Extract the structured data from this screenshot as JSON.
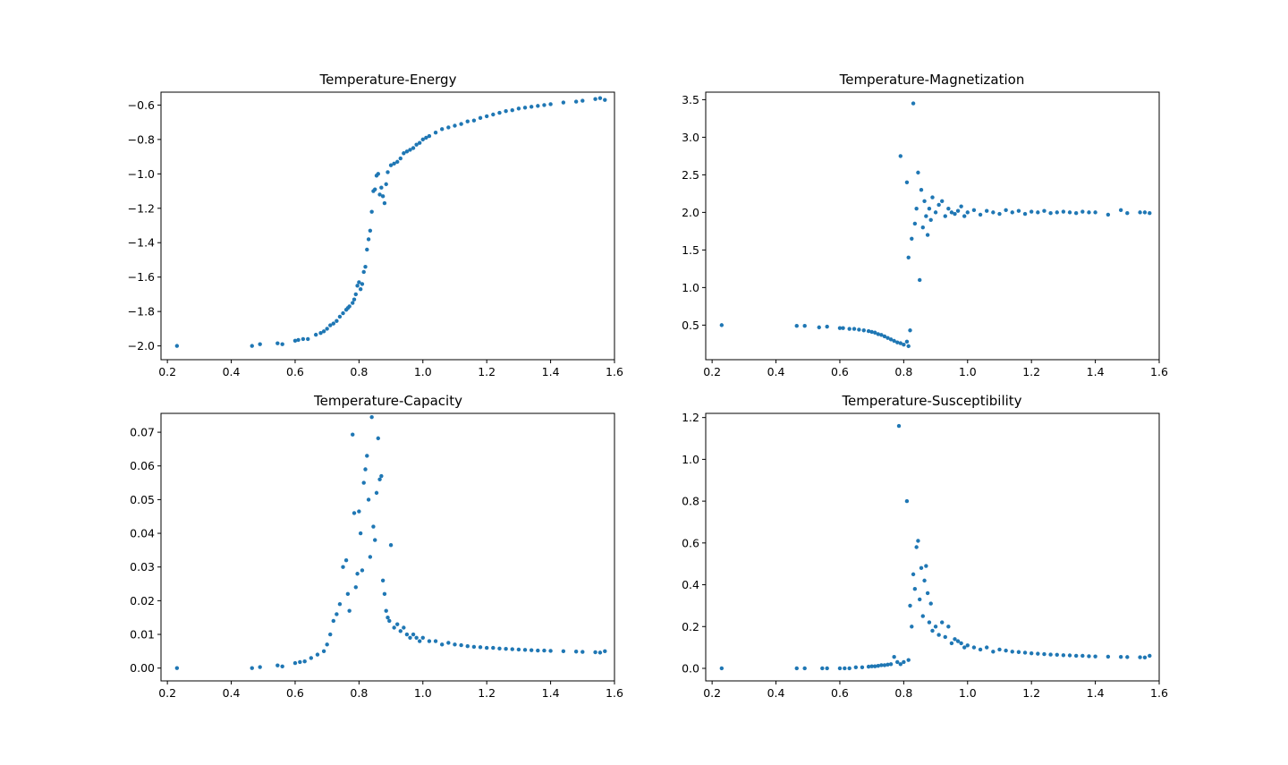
{
  "colors": {
    "marker": "#1f77b4",
    "axes": "#000000",
    "background": "#ffffff"
  },
  "chart_data": [
    {
      "type": "scatter",
      "title": "Temperature-Energy",
      "xlabel": "",
      "ylabel": "",
      "xlim": [
        0.18,
        1.6
      ],
      "ylim": [
        -2.08,
        -0.525
      ],
      "xticks": [
        "0.2",
        "0.4",
        "0.6",
        "0.8",
        "1.0",
        "1.2",
        "1.4",
        "1.6"
      ],
      "xtick_values": [
        0.2,
        0.4,
        0.6,
        0.8,
        1.0,
        1.2,
        1.4,
        1.6
      ],
      "yticks": [
        "-2.0",
        "-1.8",
        "-1.6",
        "-1.4",
        "-1.2",
        "-1.0",
        "-0.8",
        "-0.6"
      ],
      "ytick_values": [
        -2.0,
        -1.8,
        -1.6,
        -1.4,
        -1.2,
        -1.0,
        -0.8,
        -0.6
      ],
      "grid": false,
      "legend": "none",
      "x": [
        0.23,
        0.465,
        0.49,
        0.545,
        0.56,
        0.6,
        0.61,
        0.625,
        0.64,
        0.665,
        0.68,
        0.69,
        0.7,
        0.71,
        0.72,
        0.73,
        0.74,
        0.75,
        0.76,
        0.765,
        0.77,
        0.78,
        0.785,
        0.79,
        0.795,
        0.8,
        0.805,
        0.81,
        0.815,
        0.82,
        0.825,
        0.83,
        0.835,
        0.84,
        0.845,
        0.85,
        0.855,
        0.86,
        0.865,
        0.87,
        0.875,
        0.88,
        0.885,
        0.89,
        0.9,
        0.91,
        0.92,
        0.93,
        0.94,
        0.95,
        0.96,
        0.97,
        0.98,
        0.99,
        1.0,
        1.01,
        1.02,
        1.04,
        1.06,
        1.08,
        1.1,
        1.12,
        1.14,
        1.16,
        1.18,
        1.2,
        1.22,
        1.24,
        1.26,
        1.28,
        1.3,
        1.32,
        1.34,
        1.36,
        1.38,
        1.4,
        1.44,
        1.48,
        1.5,
        1.54,
        1.555,
        1.57
      ],
      "y": [
        -2.0,
        -2.0,
        -1.99,
        -1.985,
        -1.99,
        -1.97,
        -1.965,
        -1.96,
        -1.96,
        -1.935,
        -1.925,
        -1.915,
        -1.9,
        -1.88,
        -1.87,
        -1.855,
        -1.83,
        -1.81,
        -1.79,
        -1.78,
        -1.77,
        -1.75,
        -1.73,
        -1.7,
        -1.65,
        -1.63,
        -1.67,
        -1.64,
        -1.57,
        -1.54,
        -1.44,
        -1.38,
        -1.33,
        -1.22,
        -1.1,
        -1.09,
        -1.01,
        -1.0,
        -1.12,
        -1.08,
        -1.13,
        -1.17,
        -1.06,
        -0.99,
        -0.95,
        -0.94,
        -0.93,
        -0.91,
        -0.88,
        -0.87,
        -0.86,
        -0.85,
        -0.83,
        -0.82,
        -0.8,
        -0.79,
        -0.78,
        -0.76,
        -0.74,
        -0.73,
        -0.72,
        -0.71,
        -0.695,
        -0.69,
        -0.675,
        -0.665,
        -0.655,
        -0.645,
        -0.635,
        -0.63,
        -0.62,
        -0.615,
        -0.61,
        -0.605,
        -0.6,
        -0.595,
        -0.585,
        -0.58,
        -0.575,
        -0.565,
        -0.56,
        -0.57
      ]
    },
    {
      "type": "scatter",
      "title": "Temperature-Magnetization",
      "xlabel": "",
      "ylabel": "",
      "xlim": [
        0.18,
        1.6
      ],
      "ylim": [
        0.04,
        3.6
      ],
      "xticks": [
        "0.2",
        "0.4",
        "0.6",
        "0.8",
        "1.0",
        "1.2",
        "1.4",
        "1.6"
      ],
      "xtick_values": [
        0.2,
        0.4,
        0.6,
        0.8,
        1.0,
        1.2,
        1.4,
        1.6
      ],
      "yticks": [
        "0.5",
        "1.0",
        "1.5",
        "2.0",
        "2.5",
        "3.0",
        "3.5"
      ],
      "ytick_values": [
        0.5,
        1.0,
        1.5,
        2.0,
        2.5,
        3.0,
        3.5
      ],
      "grid": false,
      "legend": "none",
      "x": [
        0.23,
        0.465,
        0.49,
        0.535,
        0.56,
        0.6,
        0.61,
        0.63,
        0.645,
        0.66,
        0.675,
        0.69,
        0.7,
        0.71,
        0.72,
        0.73,
        0.74,
        0.75,
        0.76,
        0.77,
        0.78,
        0.79,
        0.8,
        0.81,
        0.815,
        0.82,
        0.79,
        0.81,
        0.815,
        0.825,
        0.83,
        0.835,
        0.84,
        0.845,
        0.85,
        0.855,
        0.86,
        0.865,
        0.87,
        0.875,
        0.88,
        0.885,
        0.89,
        0.9,
        0.91,
        0.92,
        0.93,
        0.94,
        0.95,
        0.96,
        0.97,
        0.98,
        0.99,
        1.0,
        1.02,
        1.04,
        1.06,
        1.08,
        1.1,
        1.12,
        1.14,
        1.16,
        1.18,
        1.2,
        1.22,
        1.24,
        1.26,
        1.28,
        1.3,
        1.32,
        1.34,
        1.36,
        1.38,
        1.4,
        1.44,
        1.48,
        1.5,
        1.54,
        1.555,
        1.57
      ],
      "y": [
        0.5,
        0.49,
        0.49,
        0.47,
        0.48,
        0.46,
        0.46,
        0.45,
        0.45,
        0.44,
        0.43,
        0.42,
        0.41,
        0.4,
        0.38,
        0.37,
        0.35,
        0.33,
        0.31,
        0.29,
        0.27,
        0.26,
        0.24,
        0.28,
        0.22,
        0.43,
        2.75,
        2.4,
        1.4,
        1.65,
        3.45,
        1.85,
        2.05,
        2.53,
        1.1,
        2.3,
        1.8,
        2.15,
        1.95,
        1.7,
        2.05,
        1.9,
        2.2,
        2.0,
        2.1,
        2.15,
        1.95,
        2.05,
        2.0,
        1.98,
        2.02,
        2.08,
        1.95,
        2.0,
        2.03,
        1.97,
        2.02,
        2.0,
        1.98,
        2.03,
        2.0,
        2.02,
        1.98,
        2.01,
        2.0,
        2.02,
        1.99,
        2.0,
        2.01,
        2.0,
        1.99,
        2.01,
        2.0,
        2.0,
        1.97,
        2.03,
        1.99,
        2.0,
        2.0,
        1.99
      ]
    },
    {
      "type": "scatter",
      "title": "Temperature-Capacity",
      "xlabel": "",
      "ylabel": "",
      "xlim": [
        0.18,
        1.6
      ],
      "ylim": [
        -0.0038,
        0.0756
      ],
      "xticks": [
        "0.2",
        "0.4",
        "0.6",
        "0.8",
        "1.0",
        "1.2",
        "1.4",
        "1.6"
      ],
      "xtick_values": [
        0.2,
        0.4,
        0.6,
        0.8,
        1.0,
        1.2,
        1.4,
        1.6
      ],
      "yticks": [
        "0.00",
        "0.01",
        "0.02",
        "0.03",
        "0.04",
        "0.05",
        "0.06",
        "0.07"
      ],
      "ytick_values": [
        0.0,
        0.01,
        0.02,
        0.03,
        0.04,
        0.05,
        0.06,
        0.07
      ],
      "grid": false,
      "legend": "none",
      "x": [
        0.23,
        0.465,
        0.49,
        0.545,
        0.56,
        0.6,
        0.615,
        0.63,
        0.65,
        0.67,
        0.69,
        0.7,
        0.71,
        0.72,
        0.73,
        0.74,
        0.75,
        0.76,
        0.765,
        0.77,
        0.78,
        0.785,
        0.79,
        0.795,
        0.8,
        0.805,
        0.81,
        0.815,
        0.82,
        0.825,
        0.83,
        0.835,
        0.84,
        0.845,
        0.85,
        0.855,
        0.86,
        0.865,
        0.87,
        0.875,
        0.88,
        0.885,
        0.89,
        0.895,
        0.9,
        0.91,
        0.92,
        0.93,
        0.94,
        0.95,
        0.96,
        0.97,
        0.98,
        0.99,
        1.0,
        1.02,
        1.04,
        1.06,
        1.08,
        1.1,
        1.12,
        1.14,
        1.16,
        1.18,
        1.2,
        1.22,
        1.24,
        1.26,
        1.28,
        1.3,
        1.32,
        1.34,
        1.36,
        1.38,
        1.4,
        1.44,
        1.48,
        1.5,
        1.54,
        1.555,
        1.57
      ],
      "y": [
        0.0,
        0.0,
        0.0003,
        0.0008,
        0.0005,
        0.0015,
        0.0018,
        0.002,
        0.003,
        0.004,
        0.005,
        0.007,
        0.01,
        0.014,
        0.016,
        0.019,
        0.03,
        0.032,
        0.022,
        0.017,
        0.0693,
        0.046,
        0.024,
        0.028,
        0.0465,
        0.04,
        0.029,
        0.055,
        0.059,
        0.063,
        0.05,
        0.033,
        0.0745,
        0.042,
        0.038,
        0.052,
        0.0682,
        0.056,
        0.057,
        0.026,
        0.022,
        0.017,
        0.015,
        0.014,
        0.0365,
        0.012,
        0.013,
        0.011,
        0.012,
        0.01,
        0.009,
        0.01,
        0.009,
        0.008,
        0.009,
        0.008,
        0.008,
        0.007,
        0.0075,
        0.007,
        0.0068,
        0.0065,
        0.0063,
        0.0062,
        0.006,
        0.006,
        0.0058,
        0.0057,
        0.0056,
        0.0055,
        0.0054,
        0.0053,
        0.0052,
        0.0052,
        0.0051,
        0.005,
        0.0049,
        0.0048,
        0.0047,
        0.0046,
        0.005
      ]
    },
    {
      "type": "scatter",
      "title": "Temperature-Susceptibility",
      "xlabel": "",
      "ylabel": "",
      "xlim": [
        0.18,
        1.6
      ],
      "ylim": [
        -0.06,
        1.22
      ],
      "xticks": [
        "0.2",
        "0.4",
        "0.6",
        "0.8",
        "1.0",
        "1.2",
        "1.4",
        "1.6"
      ],
      "xtick_values": [
        0.2,
        0.4,
        0.6,
        0.8,
        1.0,
        1.2,
        1.4,
        1.6
      ],
      "yticks": [
        "0.0",
        "0.2",
        "0.4",
        "0.6",
        "0.8",
        "1.0",
        "1.2"
      ],
      "ytick_values": [
        0.0,
        0.2,
        0.4,
        0.6,
        0.8,
        1.0,
        1.2
      ],
      "grid": false,
      "legend": "none",
      "x": [
        0.23,
        0.465,
        0.49,
        0.545,
        0.56,
        0.6,
        0.615,
        0.63,
        0.65,
        0.67,
        0.69,
        0.7,
        0.71,
        0.72,
        0.73,
        0.74,
        0.75,
        0.76,
        0.77,
        0.78,
        0.785,
        0.79,
        0.8,
        0.81,
        0.815,
        0.82,
        0.825,
        0.83,
        0.835,
        0.84,
        0.845,
        0.85,
        0.855,
        0.86,
        0.865,
        0.87,
        0.875,
        0.88,
        0.885,
        0.89,
        0.9,
        0.91,
        0.92,
        0.93,
        0.94,
        0.95,
        0.96,
        0.97,
        0.98,
        0.99,
        1.0,
        1.02,
        1.04,
        1.06,
        1.08,
        1.1,
        1.12,
        1.14,
        1.16,
        1.18,
        1.2,
        1.22,
        1.24,
        1.26,
        1.28,
        1.3,
        1.32,
        1.34,
        1.36,
        1.38,
        1.4,
        1.44,
        1.48,
        1.5,
        1.54,
        1.555,
        1.57
      ],
      "y": [
        0.0,
        0.0,
        0.0,
        0.0,
        0.0,
        0.0,
        0.0,
        0.0,
        0.005,
        0.005,
        0.008,
        0.01,
        0.01,
        0.012,
        0.015,
        0.015,
        0.018,
        0.02,
        0.055,
        0.03,
        1.16,
        0.02,
        0.03,
        0.8,
        0.04,
        0.3,
        0.2,
        0.45,
        0.38,
        0.58,
        0.61,
        0.33,
        0.48,
        0.25,
        0.42,
        0.49,
        0.36,
        0.22,
        0.31,
        0.18,
        0.2,
        0.16,
        0.22,
        0.15,
        0.2,
        0.12,
        0.14,
        0.13,
        0.12,
        0.1,
        0.11,
        0.1,
        0.09,
        0.1,
        0.08,
        0.09,
        0.085,
        0.08,
        0.078,
        0.075,
        0.072,
        0.07,
        0.068,
        0.066,
        0.065,
        0.063,
        0.062,
        0.06,
        0.06,
        0.058,
        0.057,
        0.056,
        0.055,
        0.054,
        0.053,
        0.052,
        0.06
      ]
    }
  ]
}
